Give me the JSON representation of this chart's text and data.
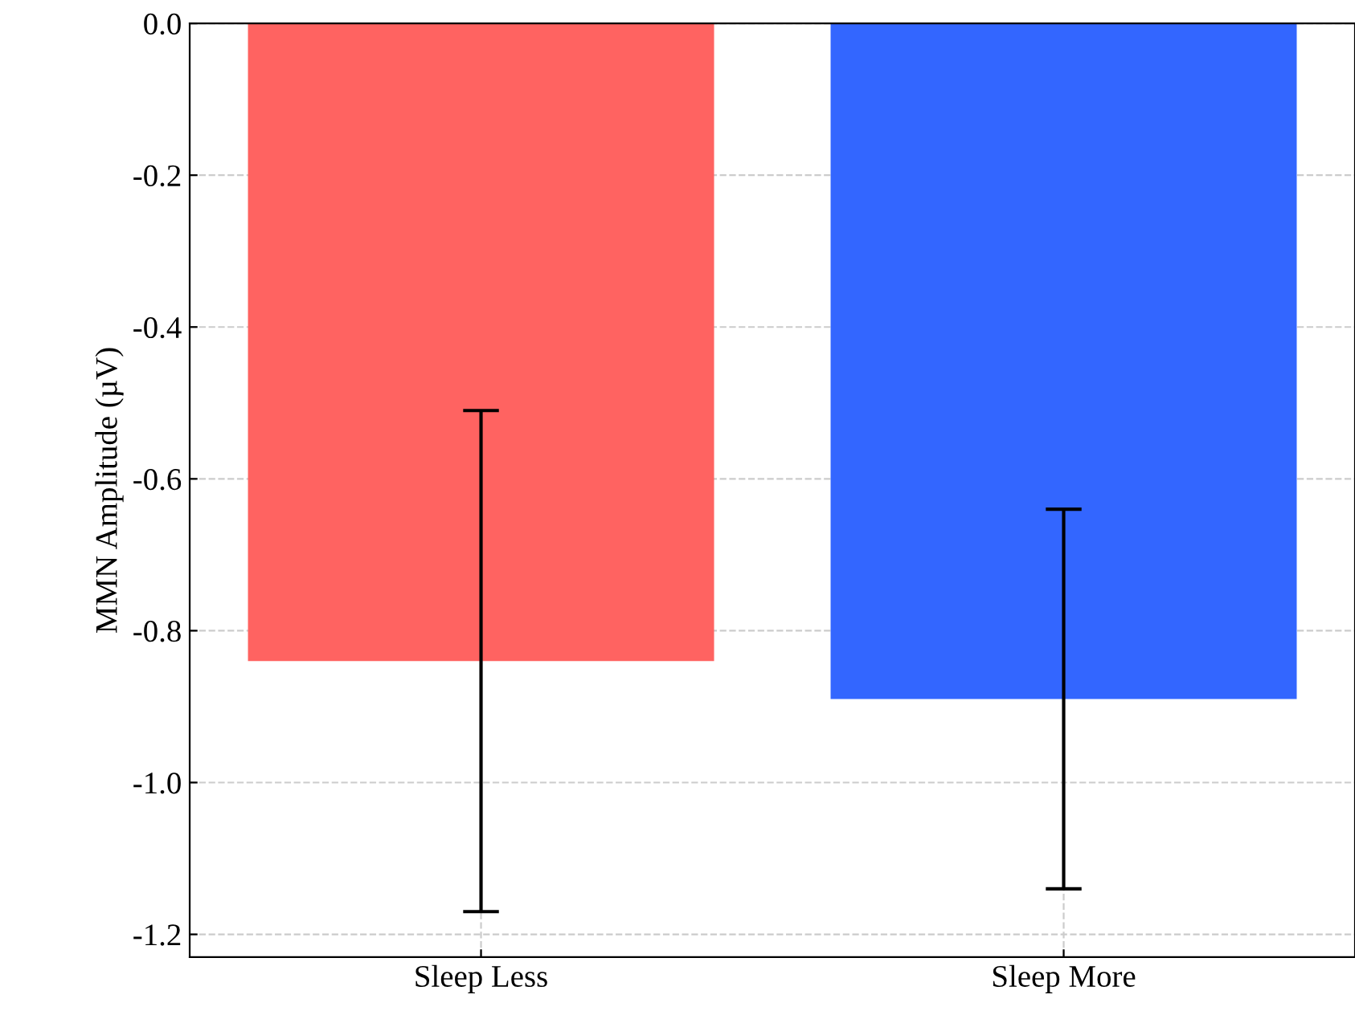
{
  "chart_data": {
    "type": "bar",
    "ylabel": "MMN Amplitude (µV)",
    "categories": [
      "Sleep Less",
      "Sleep More"
    ],
    "series": [
      {
        "color": "#ff6361",
        "values": [
          -0.84,
          null
        ],
        "errors": [
          0.33,
          null
        ]
      },
      {
        "color": "#3366ff",
        "values": [
          null,
          -0.89
        ],
        "errors": [
          null,
          0.25
        ]
      }
    ],
    "ylim": [
      -1.23,
      0
    ],
    "yticks": [
      {
        "value": 0,
        "label": "0.0"
      },
      {
        "value": -0.2,
        "label": "-0.2"
      },
      {
        "value": -0.4,
        "label": "-0.4"
      },
      {
        "value": -0.6,
        "label": "-0.6"
      },
      {
        "value": -0.8,
        "label": "-0.8"
      },
      {
        "value": -1.0,
        "label": "-1.0"
      },
      {
        "value": -1.2,
        "label": "-1.2"
      }
    ],
    "grid": true
  }
}
